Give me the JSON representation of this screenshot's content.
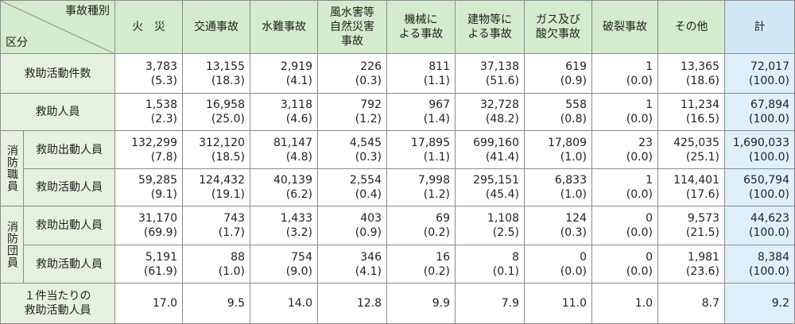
{
  "header": {
    "type_label": "事故種別",
    "category_label": "区分",
    "columns": [
      [
        "火　災"
      ],
      [
        "交通事故"
      ],
      [
        "水難事故"
      ],
      [
        "風水害等",
        "自然災害",
        "事故"
      ],
      [
        "機械に",
        "よる事故"
      ],
      [
        "建物等に",
        "よる事故"
      ],
      [
        "ガス及び",
        "酸欠事故"
      ],
      [
        "破裂事故"
      ],
      [
        "その他"
      ],
      [
        "計"
      ]
    ]
  },
  "rows": [
    {
      "label": "救助活動件数",
      "cells": [
        {
          "count": "3,783",
          "share": "(5.3)"
        },
        {
          "count": "13,155",
          "share": "(18.3)"
        },
        {
          "count": "2,919",
          "share": "(4.1)"
        },
        {
          "count": "226",
          "share": "(0.3)"
        },
        {
          "count": "811",
          "share": "(1.1)"
        },
        {
          "count": "37,138",
          "share": "(51.6)"
        },
        {
          "count": "619",
          "share": "(0.9)"
        },
        {
          "count": "1",
          "share": "(0.0)"
        },
        {
          "count": "13,365",
          "share": "(18.6)"
        },
        {
          "count": "72,017",
          "share": "(100.0)"
        }
      ]
    },
    {
      "label": "救助人員",
      "cells": [
        {
          "count": "1,538",
          "share": "(2.3)"
        },
        {
          "count": "16,958",
          "share": "(25.0)"
        },
        {
          "count": "3,118",
          "share": "(4.6)"
        },
        {
          "count": "792",
          "share": "(1.2)"
        },
        {
          "count": "967",
          "share": "(1.4)"
        },
        {
          "count": "32,728",
          "share": "(48.2)"
        },
        {
          "count": "558",
          "share": "(0.8)"
        },
        {
          "count": "1",
          "share": "(0.0)"
        },
        {
          "count": "11,234",
          "share": "(16.5)"
        },
        {
          "count": "67,894",
          "share": "(100.0)"
        }
      ]
    }
  ],
  "groups": [
    {
      "label": "消防職員",
      "rows": [
        {
          "label": "救助出動人員",
          "cells": [
            {
              "count": "132,299",
              "share": "(7.8)"
            },
            {
              "count": "312,120",
              "share": "(18.5)"
            },
            {
              "count": "81,147",
              "share": "(4.8)"
            },
            {
              "count": "4,545",
              "share": "(0.3)"
            },
            {
              "count": "17,895",
              "share": "(1.1)"
            },
            {
              "count": "699,160",
              "share": "(41.4)"
            },
            {
              "count": "17,809",
              "share": "(1.0)"
            },
            {
              "count": "23",
              "share": "(0.0)"
            },
            {
              "count": "425,035",
              "share": "(25.1)"
            },
            {
              "count": "1,690,033",
              "share": "(100.0)"
            }
          ]
        },
        {
          "label": "救助活動人員",
          "cells": [
            {
              "count": "59,285",
              "share": "(9.1)"
            },
            {
              "count": "124,432",
              "share": "(19.1)"
            },
            {
              "count": "40,139",
              "share": "(6.2)"
            },
            {
              "count": "2,554",
              "share": "(0.4)"
            },
            {
              "count": "7,998",
              "share": "(1.2)"
            },
            {
              "count": "295,151",
              "share": "(45.4)"
            },
            {
              "count": "6,833",
              "share": "(1.0)"
            },
            {
              "count": "1",
              "share": "(0.0)"
            },
            {
              "count": "114,401",
              "share": "(17.6)"
            },
            {
              "count": "650,794",
              "share": "(100.0)"
            }
          ]
        }
      ]
    },
    {
      "label": "消防団員",
      "rows": [
        {
          "label": "救助出動人員",
          "cells": [
            {
              "count": "31,170",
              "share": "(69.9)"
            },
            {
              "count": "743",
              "share": "(1.7)"
            },
            {
              "count": "1,433",
              "share": "(3.2)"
            },
            {
              "count": "403",
              "share": "(0.9)"
            },
            {
              "count": "69",
              "share": "(0.2)"
            },
            {
              "count": "1,108",
              "share": "(2.5)"
            },
            {
              "count": "124",
              "share": "(0.3)"
            },
            {
              "count": "0",
              "share": "(0.0)"
            },
            {
              "count": "9,573",
              "share": "(21.5)"
            },
            {
              "count": "44,623",
              "share": "(100.0)"
            }
          ]
        },
        {
          "label": "救助活動人員",
          "cells": [
            {
              "count": "5,191",
              "share": "(61.9)"
            },
            {
              "count": "88",
              "share": "(1.0)"
            },
            {
              "count": "754",
              "share": "(9.0)"
            },
            {
              "count": "346",
              "share": "(4.1)"
            },
            {
              "count": "16",
              "share": "(0.2)"
            },
            {
              "count": "8",
              "share": "(0.1)"
            },
            {
              "count": "0",
              "share": "(0.0)"
            },
            {
              "count": "0",
              "share": "(0.0)"
            },
            {
              "count": "1,981",
              "share": "(23.6)"
            },
            {
              "count": "8,384",
              "share": "(100.0)"
            }
          ]
        }
      ]
    }
  ],
  "per_case": {
    "label": [
      "１件当たりの",
      "救助活動人員"
    ],
    "values": [
      "17.0",
      "9.5",
      "14.0",
      "12.8",
      "9.9",
      "7.9",
      "11.0",
      "1.0",
      "8.7",
      "9.2"
    ]
  }
}
